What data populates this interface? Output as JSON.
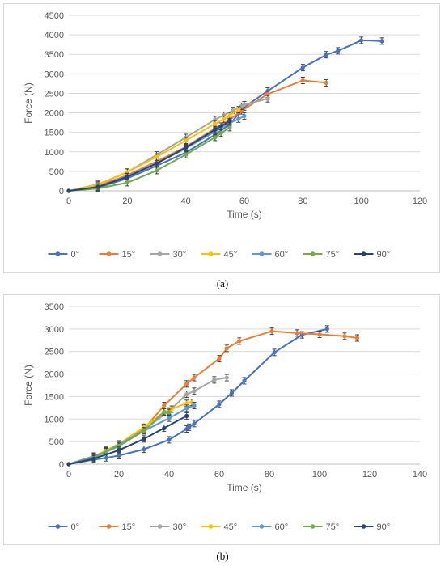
{
  "captions": {
    "a": "(a)",
    "b": "(b)"
  },
  "colors": {
    "0°": "#4472c4",
    "15°": "#ed7d31",
    "30°": "#a5a5a5",
    "45°": "#ffc000",
    "60°": "#5b9bd5",
    "75°": "#70ad47",
    "90°": "#264478"
  },
  "chart_data": [
    {
      "type": "line",
      "id": "a",
      "xlabel": "Time (s)",
      "ylabel": "Force (N)",
      "xlim": [
        0,
        120
      ],
      "ylim": [
        0,
        4500
      ],
      "xticks": [
        0,
        20,
        40,
        60,
        80,
        100,
        120
      ],
      "yticks": [
        0,
        500,
        1000,
        1500,
        2000,
        2500,
        3000,
        3500,
        4000,
        4500
      ],
      "grid": true,
      "legend": "bottom",
      "series": [
        {
          "name": "0°",
          "x": [
            0,
            10,
            20,
            30,
            40,
            50,
            55,
            60,
            68,
            80,
            88,
            92,
            100,
            107
          ],
          "y": [
            0,
            80,
            320,
            640,
            980,
            1440,
            1700,
            2150,
            2560,
            3160,
            3490,
            3590,
            3860,
            3840
          ]
        },
        {
          "name": "15°",
          "x": [
            0,
            10,
            20,
            30,
            40,
            50,
            55,
            59,
            68,
            80,
            88
          ],
          "y": [
            0,
            130,
            400,
            750,
            1130,
            1600,
            1820,
            2050,
            2480,
            2830,
            2770
          ]
        },
        {
          "name": "30°",
          "x": [
            0,
            10,
            20,
            30,
            40,
            50,
            53,
            56,
            59,
            60,
            68
          ],
          "y": [
            0,
            170,
            480,
            920,
            1370,
            1830,
            1940,
            2060,
            2170,
            2210,
            2360
          ]
        },
        {
          "name": "45°",
          "x": [
            0,
            10,
            20,
            30,
            40,
            50,
            53,
            55,
            58
          ],
          "y": [
            0,
            160,
            480,
            870,
            1290,
            1720,
            1840,
            1930,
            2080
          ]
        },
        {
          "name": "60°",
          "x": [
            0,
            10,
            20,
            30,
            40,
            50,
            55,
            58,
            60
          ],
          "y": [
            0,
            100,
            370,
            700,
            1090,
            1520,
            1740,
            1840,
            1920
          ]
        },
        {
          "name": "75°",
          "x": [
            0,
            10,
            20,
            30,
            40,
            50,
            52,
            55
          ],
          "y": [
            0,
            60,
            210,
            520,
            930,
            1370,
            1480,
            1620
          ]
        },
        {
          "name": "90°",
          "x": [
            0,
            10,
            20,
            30,
            40,
            50,
            52,
            55
          ],
          "y": [
            0,
            100,
            360,
            700,
            1110,
            1570,
            1660,
            1780
          ]
        }
      ]
    },
    {
      "type": "line",
      "id": "b",
      "xlabel": "Time (s)",
      "ylabel": "Force (N)",
      "xlim": [
        0,
        140
      ],
      "ylim": [
        0,
        3500
      ],
      "xticks": [
        0,
        20,
        40,
        60,
        80,
        100,
        120,
        140
      ],
      "yticks": [
        0,
        500,
        1000,
        1500,
        2000,
        2500,
        3000,
        3500
      ],
      "grid": true,
      "legend": "bottom",
      "series": [
        {
          "name": "0°",
          "x": [
            0,
            10,
            15,
            20,
            30,
            40,
            47,
            48,
            50,
            60,
            65,
            70,
            82,
            93,
            103
          ],
          "y": [
            0,
            100,
            140,
            190,
            330,
            540,
            780,
            820,
            900,
            1330,
            1580,
            1850,
            2480,
            2870,
            3000
          ]
        },
        {
          "name": "15°",
          "x": [
            0,
            10,
            15,
            20,
            30,
            38,
            47,
            50,
            60,
            63,
            68,
            81,
            91,
            100,
            110,
            115
          ],
          "y": [
            0,
            180,
            300,
            430,
            780,
            1300,
            1780,
            1920,
            2340,
            2570,
            2730,
            2950,
            2910,
            2880,
            2840,
            2800
          ]
        },
        {
          "name": "30°",
          "x": [
            0,
            10,
            15,
            20,
            30,
            40,
            47,
            50,
            58,
            63
          ],
          "y": [
            0,
            150,
            270,
            400,
            760,
            1180,
            1550,
            1620,
            1870,
            1920
          ]
        },
        {
          "name": "45°",
          "x": [
            0,
            10,
            15,
            20,
            30,
            38,
            41,
            47,
            49
          ],
          "y": [
            0,
            150,
            310,
            450,
            820,
            1160,
            1220,
            1350,
            1370
          ]
        },
        {
          "name": "60°",
          "x": [
            0,
            10,
            15,
            20,
            30,
            40,
            47,
            50
          ],
          "y": [
            0,
            170,
            280,
            440,
            740,
            1020,
            1240,
            1300
          ]
        },
        {
          "name": "75°",
          "x": [
            0,
            10,
            15,
            20,
            30,
            38,
            40
          ],
          "y": [
            0,
            140,
            290,
            400,
            740,
            1160,
            1150
          ]
        },
        {
          "name": "90°",
          "x": [
            0,
            10,
            20,
            30,
            38,
            47
          ],
          "y": [
            0,
            120,
            310,
            560,
            800,
            1070
          ]
        }
      ]
    }
  ]
}
